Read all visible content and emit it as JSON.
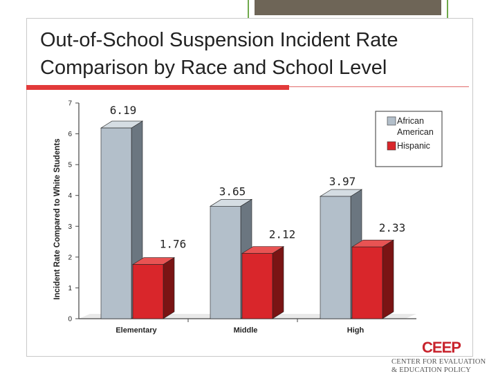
{
  "slide": {
    "title_line1": "Out-of-School Suspension Incident Rate",
    "title_line2": "Comparison by Race and School Level"
  },
  "colors": {
    "african_american_front": "#b3bfca",
    "african_american_side": "#6b7680",
    "african_american_top": "#d5dde3",
    "hispanic_front": "#d9262b",
    "hispanic_side": "#7a1414",
    "hispanic_top": "#e85353",
    "title_rule": "#e23a3a",
    "logo_red": "#c8232c"
  },
  "chart_data": {
    "type": "bar",
    "title": "",
    "xlabel": "",
    "ylabel": "Incident Rate Compared to White Students",
    "ylim": [
      0,
      7
    ],
    "yticks": [
      "0",
      "1",
      "2",
      "3",
      "4",
      "5",
      "6",
      "7"
    ],
    "categories": [
      "Elementary",
      "Middle",
      "High"
    ],
    "series": [
      {
        "name": "African American",
        "values": [
          6.19,
          3.65,
          3.97
        ],
        "labels": [
          "6.19",
          "3.65",
          "3.97"
        ]
      },
      {
        "name": "Hispanic",
        "values": [
          1.76,
          2.12,
          2.33
        ],
        "labels": [
          "1.76",
          "2.12",
          "2.33"
        ]
      }
    ],
    "legend": {
      "position": "top-right",
      "entries": [
        {
          "lines": [
            "African",
            "American"
          ]
        },
        {
          "lines": [
            "Hispanic"
          ]
        }
      ]
    },
    "grid": false,
    "style": "3d"
  },
  "logo": {
    "mark": "CEEP",
    "line1": "CENTER FOR EVALUATION",
    "line2": "& EDUCATION POLICY"
  }
}
